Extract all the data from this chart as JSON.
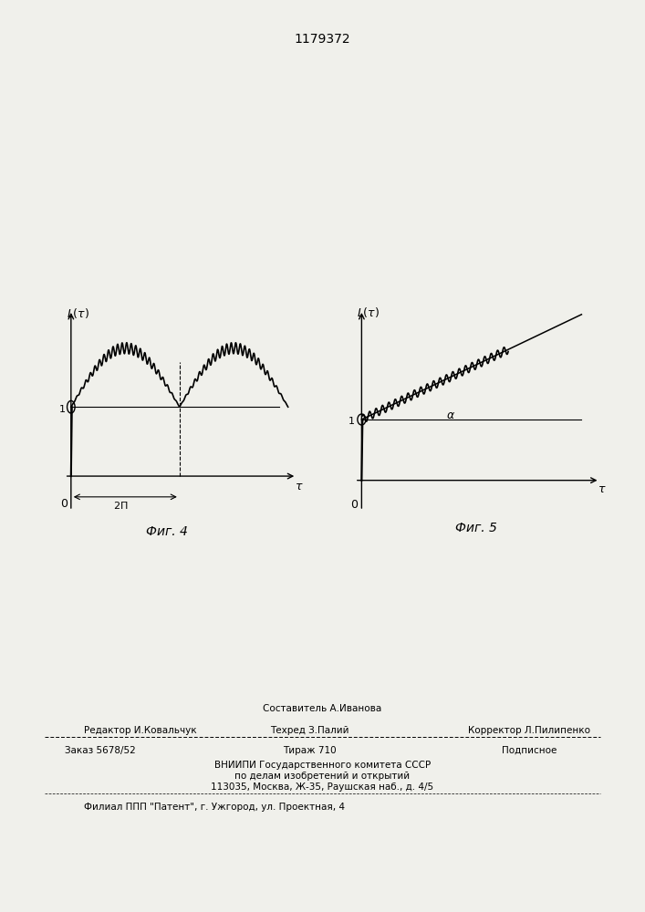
{
  "title": "1179372",
  "fig4_label": "Фиг. 4",
  "fig5_label": "Фиг. 5",
  "bg_color": "#f0f0eb",
  "line_color": "#1a1a1a",
  "footer_line1": "Составитель А.Иванова",
  "footer_editor": "Редактор И.Ковальчук",
  "footer_tech": "Техред З.Палий",
  "footer_corr": "Корректор Л.Пилипенко",
  "footer_order": "Заказ 5678/52",
  "footer_tirazh": "Тираж 710",
  "footer_podp": "Подписное",
  "footer_vniip1": "ВНИИПИ Государственного комитета СССР",
  "footer_vniip2": "по делам изобретений и открытий",
  "footer_addr": "113035, Москва, Ж-35, Раушская наб., д. 4/5",
  "footer_filial": "Филиал ППП \"Патент\", г. Ужгород, ул. Проектная, 4"
}
